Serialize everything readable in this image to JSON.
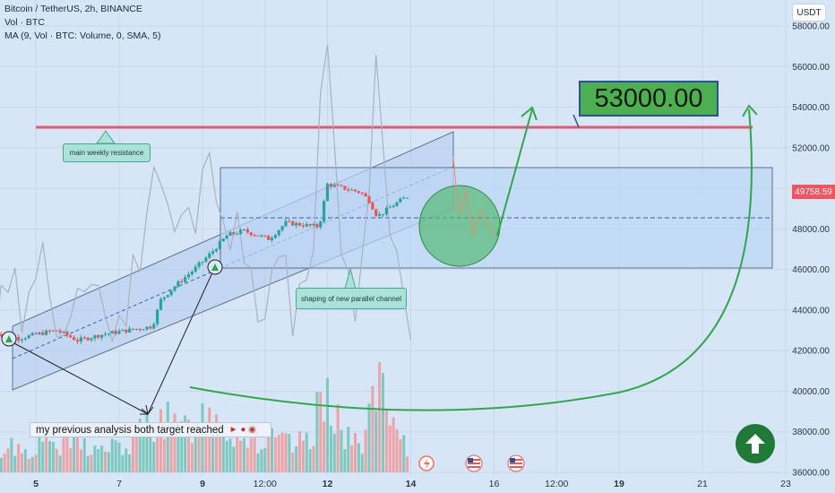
{
  "legend": {
    "symbol": "Bitcoin / TetherUS, 2h, BINANCE",
    "volume": "Vol · BTC",
    "ma": "MA (9, Vol · BTC: Volume, 0, SMA, 5)"
  },
  "currency": "USDT",
  "last_price_label": "49758.59",
  "annotations": {
    "target": "53000.00",
    "resistance_note": "main weekly resistance",
    "channel_note": "shaping of new parallel channel",
    "previous_note": "my previous analysis both target reached"
  },
  "icons": {
    "up_arrow": "up-arrow-circle-icon",
    "flag": "us-flag-icon",
    "lightning": "lightning-icon"
  },
  "colors": {
    "up": "#26a69a",
    "down": "#ef5350",
    "resistance": "#e05a6a",
    "channel": "#2f63c7",
    "forecast": "#2fa84a",
    "background": "#d6e6f7"
  },
  "chart_data": {
    "type": "candlestick",
    "y_axis": {
      "min": 36000,
      "max": 58000,
      "ticks": [
        {
          "value": 36000,
          "label": "36000.00"
        },
        {
          "value": 38000,
          "label": "38000.00"
        },
        {
          "value": 40000,
          "label": "40000.00"
        },
        {
          "value": 42000,
          "label": "42000.00"
        },
        {
          "value": 44000,
          "label": "44000.00"
        },
        {
          "value": 46000,
          "label": "46000.00"
        },
        {
          "value": 48000,
          "label": "48000.00"
        },
        {
          "value": 50000,
          "label": "50000.00"
        },
        {
          "value": 52000,
          "label": "52000.00"
        },
        {
          "value": 54000,
          "label": "54000.00"
        },
        {
          "value": 56000,
          "label": "56000.00"
        },
        {
          "value": 58000,
          "label": "58000.00"
        }
      ]
    },
    "x_axis": {
      "ticks": [
        {
          "day": 5,
          "label": "5",
          "bold": true
        },
        {
          "day": 7,
          "label": "7",
          "bold": false
        },
        {
          "day": 9,
          "label": "9",
          "bold": true
        },
        {
          "day": 10.5,
          "label": "12:00",
          "bold": false
        },
        {
          "day": 12,
          "label": "12",
          "bold": true
        },
        {
          "day": 14,
          "label": "14",
          "bold": true
        },
        {
          "day": 16,
          "label": "16",
          "bold": false
        },
        {
          "day": 17.5,
          "label": "12:00",
          "bold": false
        },
        {
          "day": 19,
          "label": "19",
          "bold": true
        },
        {
          "day": 21,
          "label": "21",
          "bold": false
        },
        {
          "day": 23,
          "label": "23",
          "bold": false
        }
      ]
    },
    "price_path": [
      [
        4.0,
        42900
      ],
      [
        4.6,
        42600
      ],
      [
        5.0,
        42800
      ],
      [
        5.5,
        43000
      ],
      [
        6.0,
        42500
      ],
      [
        6.6,
        42800
      ],
      [
        7.2,
        43000
      ],
      [
        7.8,
        43200
      ],
      [
        8.0,
        44500
      ],
      [
        8.4,
        45300
      ],
      [
        8.8,
        46000
      ],
      [
        9.2,
        46800
      ],
      [
        9.6,
        47700
      ],
      [
        10.0,
        47900
      ],
      [
        10.6,
        47500
      ],
      [
        11.0,
        48300
      ],
      [
        11.4,
        48200
      ],
      [
        11.8,
        48100
      ],
      [
        12.0,
        50200
      ],
      [
        12.4,
        50000
      ],
      [
        12.8,
        49800
      ],
      [
        13.0,
        49400
      ],
      [
        13.2,
        48600
      ],
      [
        13.6,
        49200
      ],
      [
        14.0,
        49700
      ]
    ],
    "volume_path": [
      [
        4.0,
        720
      ],
      [
        4.4,
        1100
      ],
      [
        4.8,
        800
      ],
      [
        5.2,
        1400
      ],
      [
        5.6,
        900
      ],
      [
        6.0,
        1300
      ],
      [
        6.4,
        850
      ],
      [
        6.8,
        1000
      ],
      [
        7.2,
        950
      ],
      [
        7.6,
        1800
      ],
      [
        8.0,
        2200
      ],
      [
        8.4,
        1600
      ],
      [
        8.8,
        1900
      ],
      [
        9.2,
        2500
      ],
      [
        9.6,
        1700
      ],
      [
        10.0,
        1500
      ],
      [
        10.4,
        1100
      ],
      [
        10.8,
        1300
      ],
      [
        11.2,
        1000
      ],
      [
        11.6,
        1400
      ],
      [
        12.0,
        3600
      ],
      [
        12.4,
        1300
      ],
      [
        12.8,
        1100
      ],
      [
        13.2,
        3400
      ],
      [
        13.6,
        1500
      ],
      [
        14.0,
        700
      ]
    ],
    "levels": {
      "resistance": 53000,
      "range_top": 51000,
      "range_mid": 48500,
      "range_bottom": 46000
    }
  }
}
